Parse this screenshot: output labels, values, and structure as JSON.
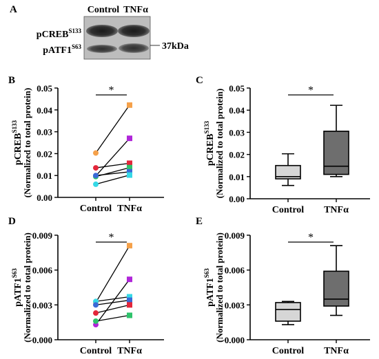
{
  "figure": {
    "panel_labels": [
      "A",
      "B",
      "C",
      "D",
      "E"
    ]
  },
  "blot": {
    "lanes": [
      "Control",
      "TNFα"
    ],
    "band_labels": [
      {
        "base": "pCREB",
        "sup": "S133"
      },
      {
        "base": "pATF1",
        "sup": "S63"
      }
    ],
    "mw_label": "37kDa"
  },
  "chart_data": [
    {
      "panel": "B",
      "type": "scatter",
      "style": "paired-lines",
      "categories": [
        "Control",
        "TNFα"
      ],
      "ylabel": {
        "base": "pCREB",
        "sup": "S133",
        "line2": "(Normalized to total protein)"
      },
      "ylim": [
        0,
        0.05
      ],
      "yticks": [
        "0.00",
        "0.01",
        "0.02",
        "0.03",
        "0.04",
        "0.05"
      ],
      "significance": "*",
      "series": [
        {
          "color": "#f5a14a",
          "values": [
            0.0203,
            0.0422
          ]
        },
        {
          "color": "#b026d9",
          "values": [
            0.0098,
            0.027
          ]
        },
        {
          "color": "#e3263a",
          "values": [
            0.0135,
            0.0156
          ]
        },
        {
          "color": "#2ec36b",
          "values": [
            0.0095,
            0.0136
          ]
        },
        {
          "color": "#3a6ad6",
          "values": [
            0.01,
            0.0117
          ]
        },
        {
          "color": "#35d8e6",
          "values": [
            0.006,
            0.0102
          ]
        }
      ]
    },
    {
      "panel": "C",
      "type": "box",
      "categories": [
        "Control",
        "TNFα"
      ],
      "ylabel": {
        "base": "pCREB",
        "sup": "S133",
        "line2": "(Normalized to total protein)"
      },
      "ylim": [
        0,
        0.05
      ],
      "yticks": [
        "0.00",
        "0.01",
        "0.02",
        "0.03",
        "0.04",
        "0.05"
      ],
      "significance": "*",
      "boxes": [
        {
          "color": "#d6d6d6",
          "min": 0.006,
          "q1": 0.009,
          "median": 0.01,
          "q3": 0.015,
          "max": 0.0203
        },
        {
          "color": "#6e6e6e",
          "min": 0.01,
          "q1": 0.011,
          "median": 0.0147,
          "q3": 0.0305,
          "max": 0.0422
        }
      ]
    },
    {
      "panel": "D",
      "type": "scatter",
      "style": "paired-lines",
      "categories": [
        "Control",
        "TNFα"
      ],
      "ylabel": {
        "base": "pATF1",
        "sup": "S63",
        "line2": "(Normalized to total protein)"
      },
      "ylim": [
        0,
        0.009
      ],
      "yticks": [
        "0.000",
        "0.003",
        "0.006",
        "0.009"
      ],
      "significance": "*",
      "series": [
        {
          "color": "#f5a14a",
          "values": [
            0.0032,
            0.0081
          ]
        },
        {
          "color": "#b026d9",
          "values": [
            0.0013,
            0.0052
          ]
        },
        {
          "color": "#35d8e6",
          "values": [
            0.0033,
            0.0037
          ]
        },
        {
          "color": "#3a6ad6",
          "values": [
            0.003,
            0.0034
          ]
        },
        {
          "color": "#e3263a",
          "values": [
            0.0023,
            0.003
          ]
        },
        {
          "color": "#2ec36b",
          "values": [
            0.0016,
            0.0021
          ]
        }
      ]
    },
    {
      "panel": "E",
      "type": "box",
      "categories": [
        "Control",
        "TNFα"
      ],
      "ylabel": {
        "base": "pATF1",
        "sup": "S63",
        "line2": "(Normalized to total protein)"
      },
      "ylim": [
        0,
        0.009
      ],
      "yticks": [
        "0.000",
        "0.003",
        "0.006",
        "0.009"
      ],
      "significance": "*",
      "boxes": [
        {
          "color": "#d6d6d6",
          "min": 0.0013,
          "q1": 0.0016,
          "median": 0.0026,
          "q3": 0.0032,
          "max": 0.0033
        },
        {
          "color": "#6e6e6e",
          "min": 0.0021,
          "q1": 0.0029,
          "median": 0.0035,
          "q3": 0.0059,
          "max": 0.0081
        }
      ]
    }
  ]
}
